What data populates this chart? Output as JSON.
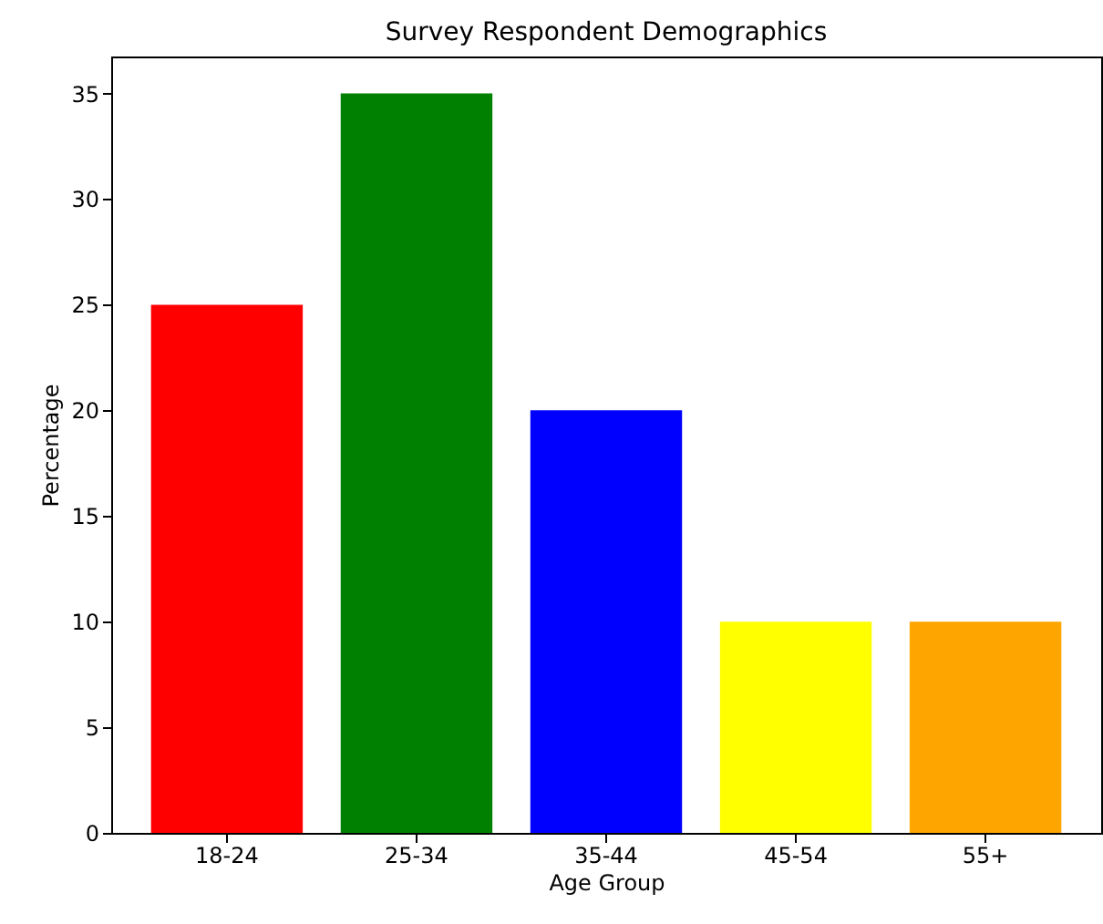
{
  "chart_data": {
    "type": "bar",
    "title": "Survey Respondent Demographics",
    "xlabel": "Age Group",
    "ylabel": "Percentage",
    "categories": [
      "18-24",
      "25-34",
      "35-44",
      "45-54",
      "55+"
    ],
    "values": [
      25,
      35,
      20,
      10,
      10
    ],
    "colors": [
      "#ff0000",
      "#008000",
      "#0000ff",
      "#ffff00",
      "#ffa500"
    ],
    "ylim": [
      0,
      36.75
    ],
    "yticks": [
      0,
      5,
      10,
      15,
      20,
      25,
      30,
      35
    ],
    "grid": false,
    "legend": false
  }
}
